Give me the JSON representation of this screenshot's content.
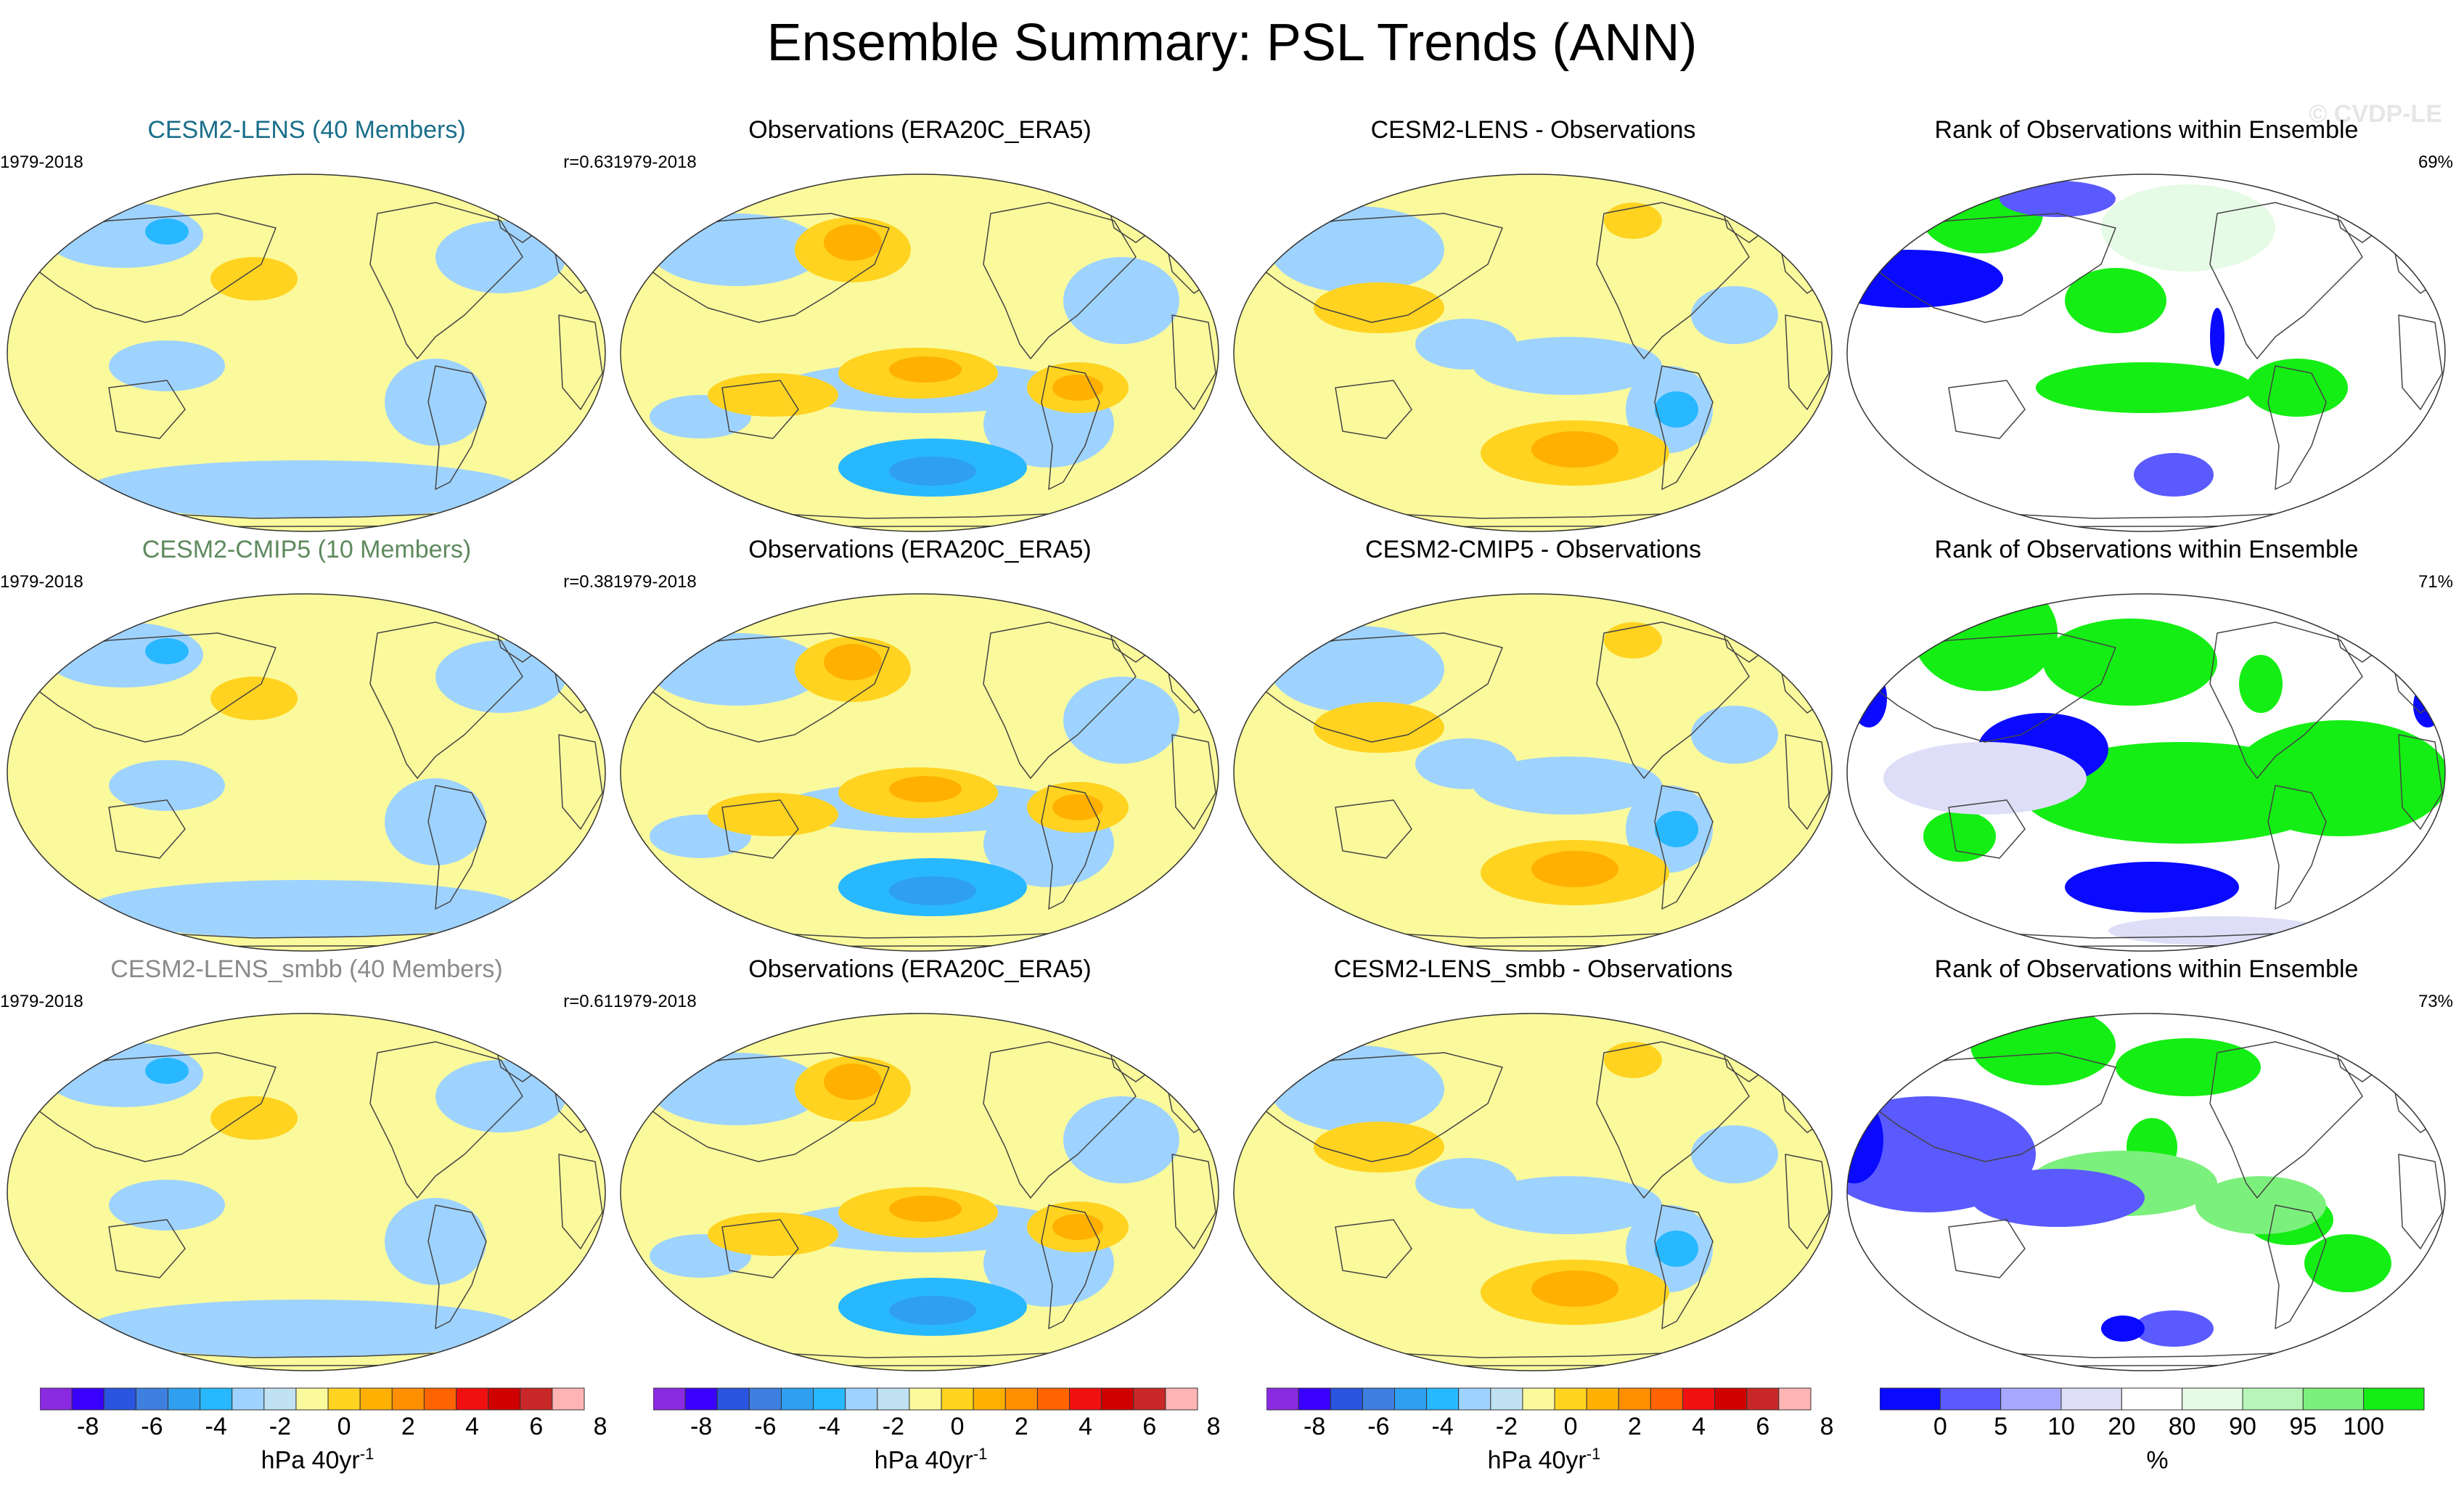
{
  "title": "Ensemble Summary: PSL Trends (ANN)",
  "watermark": "© CVDP-LE",
  "colors": {
    "lens_title": "#1a6e8a",
    "cmip5_title": "#5e8a5e",
    "smbb_title": "#8a8a8a",
    "trend_scale": [
      "#8a2be2",
      "#3a00ff",
      "#2a55e0",
      "#3f7fe0",
      "#2f9ff0",
      "#28b8ff",
      "#9fd3ff",
      "#c0e2f2",
      "#fafa9c",
      "#ffd320",
      "#ffb000",
      "#ff8e00",
      "#ff6400",
      "#f01010",
      "#d00000",
      "#c82828",
      "#ffb4b4"
    ],
    "rank_scale": [
      "#0a0aff",
      "#5a5aff",
      "#a8a8ff",
      "#dedef8",
      "#ffffff",
      "#e6fbe6",
      "#b8f5b8",
      "#7cf07c",
      "#14ee14"
    ]
  },
  "rows": [
    {
      "panels": [
        {
          "title": "CESM2-LENS (40 Members)",
          "period": "1979-2018",
          "stat": "r=0.63",
          "kind": "trend",
          "title_color": "lens_title"
        },
        {
          "title": "Observations (ERA20C_ERA5)",
          "period": "1979-2018",
          "stat": "",
          "kind": "trend",
          "title_color": ""
        },
        {
          "title": "CESM2-LENS - Observations",
          "period": "",
          "stat": "",
          "kind": "trend",
          "title_color": ""
        },
        {
          "title": "Rank of Observations within Ensemble",
          "period": "",
          "stat": "69%",
          "kind": "rank",
          "title_color": ""
        }
      ]
    },
    {
      "panels": [
        {
          "title": "CESM2-CMIP5 (10 Members)",
          "period": "1979-2018",
          "stat": "r=0.38",
          "kind": "trend",
          "title_color": "cmip5_title"
        },
        {
          "title": "Observations (ERA20C_ERA5)",
          "period": "1979-2018",
          "stat": "",
          "kind": "trend",
          "title_color": ""
        },
        {
          "title": "CESM2-CMIP5 - Observations",
          "period": "",
          "stat": "",
          "kind": "trend",
          "title_color": ""
        },
        {
          "title": "Rank of Observations within Ensemble",
          "period": "",
          "stat": "71%",
          "kind": "rank",
          "title_color": ""
        }
      ]
    },
    {
      "panels": [
        {
          "title": "CESM2-LENS_smbb (40 Members)",
          "period": "1979-2018",
          "stat": "r=0.61",
          "kind": "trend",
          "title_color": "smbb_title"
        },
        {
          "title": "Observations (ERA20C_ERA5)",
          "period": "1979-2018",
          "stat": "",
          "kind": "trend",
          "title_color": ""
        },
        {
          "title": "CESM2-LENS_smbb - Observations",
          "period": "",
          "stat": "",
          "kind": "trend",
          "title_color": ""
        },
        {
          "title": "Rank of Observations within Ensemble",
          "period": "",
          "stat": "73%",
          "kind": "rank",
          "title_color": ""
        }
      ]
    }
  ],
  "colorbars": [
    {
      "kind": "trend",
      "ticks": [
        "-8",
        "-6",
        "-4",
        "-2",
        "0",
        "2",
        "4",
        "6",
        "8"
      ],
      "unit": "hPa 40yr",
      "unit_sup": "-1"
    },
    {
      "kind": "trend",
      "ticks": [
        "-8",
        "-6",
        "-4",
        "-2",
        "0",
        "2",
        "4",
        "6",
        "8"
      ],
      "unit": "hPa 40yr",
      "unit_sup": "-1"
    },
    {
      "kind": "trend",
      "ticks": [
        "-8",
        "-6",
        "-4",
        "-2",
        "0",
        "2",
        "4",
        "6",
        "8"
      ],
      "unit": "hPa 40yr",
      "unit_sup": "-1"
    },
    {
      "kind": "rank",
      "ticks": [
        "0",
        "5",
        "10",
        "20",
        "80",
        "90",
        "95",
        "100"
      ],
      "unit": "%",
      "unit_sup": ""
    }
  ]
}
